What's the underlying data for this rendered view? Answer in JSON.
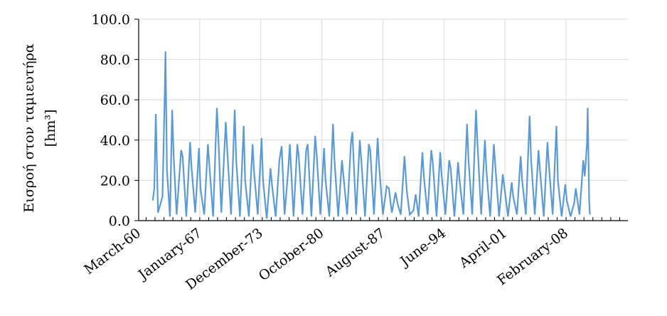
{
  "chart_data": {
    "type": "line",
    "title": "",
    "ylabel_line1": "Εισροή στον ταμιευτήρα",
    "ylabel_line2": "[hm³]",
    "xlabel": "",
    "ylim": [
      0,
      100
    ],
    "yticks": [
      "0.0",
      "20.0",
      "40.0",
      "60.0",
      "80.0",
      "100.0"
    ],
    "xlim": [
      "1960-03",
      "2014-12"
    ],
    "xtick_labels": [
      "March-60",
      "January-67",
      "December-73",
      "October-80",
      "August-87",
      "June-94",
      "April-01",
      "February-08"
    ],
    "grid": "vertical and horizontal, light gray",
    "series_color": "#5b9bd5",
    "series": [
      {
        "x_start": "1961-10",
        "x_end": "2010-09",
        "peaks": [
          [
            "1961-10",
            10
          ],
          [
            "1961-12",
            16
          ],
          [
            "1962-02",
            53
          ],
          [
            "1962-05",
            4
          ],
          [
            "1962-11",
            12
          ],
          [
            "1963-02",
            64
          ],
          [
            "1963-03",
            84
          ],
          [
            "1963-05",
            25
          ],
          [
            "1963-09",
            2
          ],
          [
            "1963-12",
            55
          ],
          [
            "1964-02",
            32
          ],
          [
            "1964-06",
            3
          ],
          [
            "1964-12",
            35
          ],
          [
            "1965-02",
            32
          ],
          [
            "1965-07",
            2
          ],
          [
            "1965-12",
            39
          ],
          [
            "1966-02",
            26
          ],
          [
            "1966-07",
            4
          ],
          [
            "1966-12",
            36
          ],
          [
            "1967-02",
            16
          ],
          [
            "1967-07",
            3
          ],
          [
            "1967-12",
            38
          ],
          [
            "1968-02",
            27
          ],
          [
            "1968-07",
            2
          ],
          [
            "1968-12",
            56
          ],
          [
            "1969-02",
            42
          ],
          [
            "1969-06",
            4
          ],
          [
            "1969-12",
            49
          ],
          [
            "1970-02",
            35
          ],
          [
            "1970-07",
            3
          ],
          [
            "1970-12",
            55
          ],
          [
            "1971-02",
            30
          ],
          [
            "1971-07",
            2
          ],
          [
            "1971-12",
            47
          ],
          [
            "1972-02",
            20
          ],
          [
            "1972-07",
            2
          ],
          [
            "1972-12",
            38
          ],
          [
            "1973-02",
            24
          ],
          [
            "1973-07",
            3
          ],
          [
            "1973-12",
            41
          ],
          [
            "1974-02",
            20
          ],
          [
            "1974-07",
            1
          ],
          [
            "1974-12",
            26
          ],
          [
            "1975-02",
            18
          ],
          [
            "1975-07",
            2
          ],
          [
            "1975-12",
            30
          ],
          [
            "1976-03",
            37
          ],
          [
            "1976-07",
            3
          ],
          [
            "1976-12",
            26
          ],
          [
            "1977-02",
            38
          ],
          [
            "1977-07",
            2
          ],
          [
            "1977-12",
            38
          ],
          [
            "1978-02",
            32
          ],
          [
            "1978-07",
            3
          ],
          [
            "1978-12",
            35
          ],
          [
            "1979-02",
            38
          ],
          [
            "1979-07",
            2
          ],
          [
            "1979-12",
            42
          ],
          [
            "1980-02",
            33
          ],
          [
            "1980-07",
            3
          ],
          [
            "1980-12",
            36
          ],
          [
            "1981-02",
            20
          ],
          [
            "1981-07",
            2
          ],
          [
            "1981-12",
            48
          ],
          [
            "1982-02",
            30
          ],
          [
            "1982-07",
            2
          ],
          [
            "1982-12",
            30
          ],
          [
            "1983-02",
            22
          ],
          [
            "1983-07",
            3
          ],
          [
            "1983-12",
            38
          ],
          [
            "1984-02",
            44
          ],
          [
            "1984-07",
            3
          ],
          [
            "1984-12",
            40
          ],
          [
            "1985-02",
            30
          ],
          [
            "1985-07",
            2
          ],
          [
            "1985-12",
            38
          ],
          [
            "1986-02",
            35
          ],
          [
            "1986-07",
            3
          ],
          [
            "1986-12",
            41
          ],
          [
            "1987-02",
            27
          ],
          [
            "1987-07",
            3
          ],
          [
            "1987-12",
            17
          ],
          [
            "1988-03",
            16
          ],
          [
            "1988-07",
            4
          ],
          [
            "1988-12",
            14
          ],
          [
            "1989-03",
            8
          ],
          [
            "1989-07",
            3
          ],
          [
            "1989-12",
            32
          ],
          [
            "1990-03",
            15
          ],
          [
            "1990-07",
            3
          ],
          [
            "1990-12",
            5
          ],
          [
            "1991-03",
            13
          ],
          [
            "1991-07",
            2
          ],
          [
            "1991-12",
            34
          ],
          [
            "1992-02",
            22
          ],
          [
            "1992-07",
            3
          ],
          [
            "1992-12",
            35
          ],
          [
            "1993-02",
            29
          ],
          [
            "1993-07",
            2
          ],
          [
            "1993-12",
            34
          ],
          [
            "1994-02",
            22
          ],
          [
            "1994-07",
            3
          ],
          [
            "1994-12",
            30
          ],
          [
            "1995-02",
            26
          ],
          [
            "1995-07",
            2
          ],
          [
            "1995-12",
            29
          ],
          [
            "1996-02",
            20
          ],
          [
            "1996-07",
            3
          ],
          [
            "1996-12",
            48
          ],
          [
            "1997-02",
            30
          ],
          [
            "1997-07",
            3
          ],
          [
            "1997-12",
            55
          ],
          [
            "1998-02",
            38
          ],
          [
            "1998-07",
            3
          ],
          [
            "1998-12",
            40
          ],
          [
            "1999-02",
            25
          ],
          [
            "1999-07",
            2
          ],
          [
            "1999-12",
            38
          ],
          [
            "2000-02",
            27
          ],
          [
            "2000-07",
            2
          ],
          [
            "2000-12",
            23
          ],
          [
            "2001-02",
            17
          ],
          [
            "2001-07",
            2
          ],
          [
            "2001-12",
            19
          ],
          [
            "2002-02",
            12
          ],
          [
            "2002-07",
            3
          ],
          [
            "2002-12",
            32
          ],
          [
            "2003-02",
            20
          ],
          [
            "2003-07",
            3
          ],
          [
            "2003-12",
            52
          ],
          [
            "2004-02",
            30
          ],
          [
            "2004-07",
            3
          ],
          [
            "2004-12",
            35
          ],
          [
            "2005-02",
            25
          ],
          [
            "2005-07",
            2
          ],
          [
            "2005-12",
            39
          ],
          [
            "2006-02",
            27
          ],
          [
            "2006-07",
            3
          ],
          [
            "2006-12",
            47
          ],
          [
            "2007-02",
            20
          ],
          [
            "2007-07",
            2
          ],
          [
            "2007-12",
            18
          ],
          [
            "2008-02",
            10
          ],
          [
            "2008-07",
            2
          ],
          [
            "2008-12",
            9
          ],
          [
            "2009-02",
            16
          ],
          [
            "2009-07",
            3
          ],
          [
            "2009-12",
            30
          ],
          [
            "2010-02",
            22
          ],
          [
            "2010-05",
            38
          ],
          [
            "2010-06",
            56
          ],
          [
            "2010-08",
            10
          ],
          [
            "2010-09",
            3
          ]
        ]
      }
    ]
  }
}
